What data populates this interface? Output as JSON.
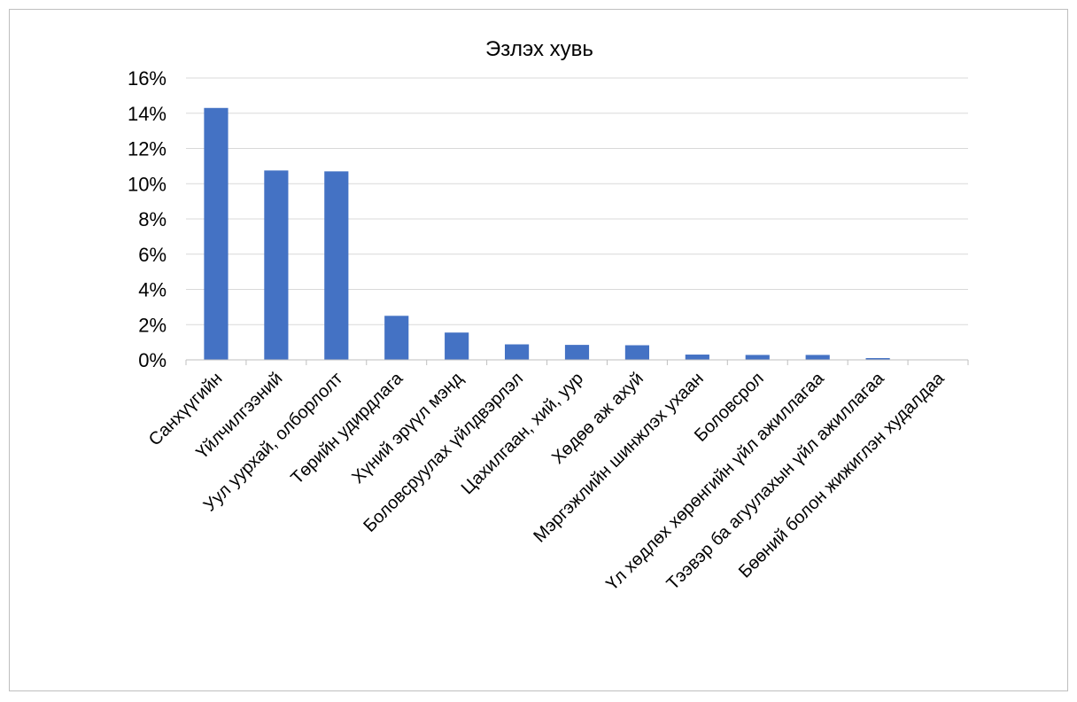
{
  "chart_data": {
    "type": "bar",
    "title": "Эзлэх хувь",
    "xlabel": "",
    "ylabel": "",
    "ylim": [
      0,
      0.16
    ],
    "y_ticks": [
      "0%",
      "2%",
      "4%",
      "6%",
      "8%",
      "10%",
      "12%",
      "14%",
      "16%"
    ],
    "grid": true,
    "legend": "none",
    "bar_color": "#4472c4",
    "categories": [
      "Санхүүгийн",
      "Үйлчилгээний",
      "Уул уурхай, олборлолт",
      "Төрийн удирдлага",
      "Хүний эрүүл мэнд",
      "Боловсруулах үйлдвэрлэл",
      "Цахилгаан, хий, уур",
      "Хөдөө аж ахуй",
      "Мэргэжлийн шинжлэх ухаан",
      "Боловсрол",
      "Үл хөдлөх хөрөнгийн үйл ажиллагаа",
      "Тээвэр ба агуулахын үйл ажиллагаа",
      "Бөөний болон жижиглэн худалдаа"
    ],
    "values": [
      0.143,
      0.1075,
      0.107,
      0.025,
      0.0155,
      0.0088,
      0.0085,
      0.0083,
      0.003,
      0.0028,
      0.0028,
      0.001,
      0.0002
    ]
  }
}
